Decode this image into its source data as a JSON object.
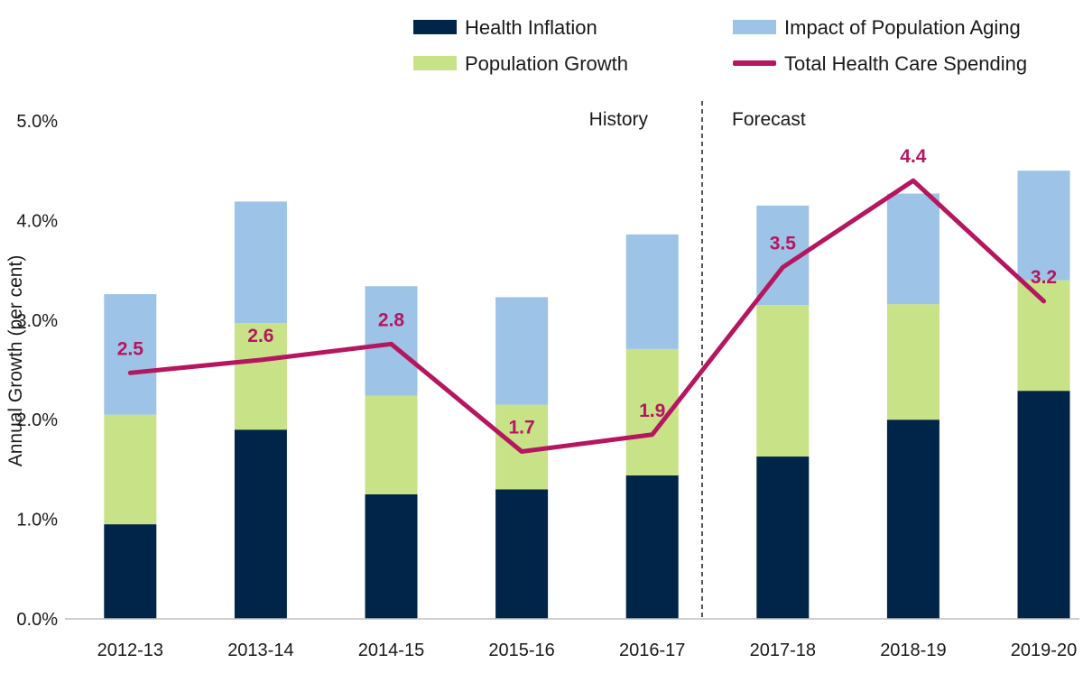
{
  "chart_data": {
    "type": "bar",
    "stacked": true,
    "categories": [
      "2012-13",
      "2013-14",
      "2014-15",
      "2015-16",
      "2016-17",
      "2017-18",
      "2018-19",
      "2019-20"
    ],
    "series": [
      {
        "name": "Health Inflation",
        "kind": "bar",
        "color": "#002548",
        "values": [
          0.95,
          1.9,
          1.25,
          1.3,
          1.44,
          1.63,
          2.0,
          2.29
        ]
      },
      {
        "name": "Population Growth",
        "kind": "bar",
        "color": "#c7e287",
        "values": [
          1.1,
          1.07,
          0.99,
          0.85,
          1.27,
          1.52,
          1.16,
          1.11
        ]
      },
      {
        "name": "Impact of Population Aging",
        "kind": "bar",
        "color": "#9dc3e6",
        "values": [
          1.21,
          1.22,
          1.1,
          1.08,
          1.15,
          1.0,
          1.11,
          1.1
        ]
      },
      {
        "name": "Total Health Care Spending",
        "kind": "line",
        "color": "#b5165f",
        "values": [
          2.47,
          2.6,
          2.76,
          1.68,
          1.85,
          3.53,
          4.4,
          3.19
        ],
        "labels": [
          "2.5",
          "2.6",
          "2.8",
          "1.7",
          "1.9",
          "3.5",
          "4.4",
          "3.2"
        ]
      }
    ],
    "legend_order": [
      "Health Inflation",
      "Impact of Population Aging",
      "Population Growth",
      "Total Health Care Spending"
    ],
    "legend_placement": "top-right",
    "xlabel": "",
    "ylabel": "Annual Growth (per cent)",
    "ylim": [
      0,
      5
    ],
    "yticks": [
      "0.0%",
      "1.0%",
      "2.0%",
      "3.0%",
      "4.0%",
      "5.0%"
    ],
    "grid": false,
    "annotations": {
      "history_label": "History",
      "forecast_label": "Forecast",
      "divider_between": [
        "2016-17",
        "2017-18"
      ]
    }
  }
}
